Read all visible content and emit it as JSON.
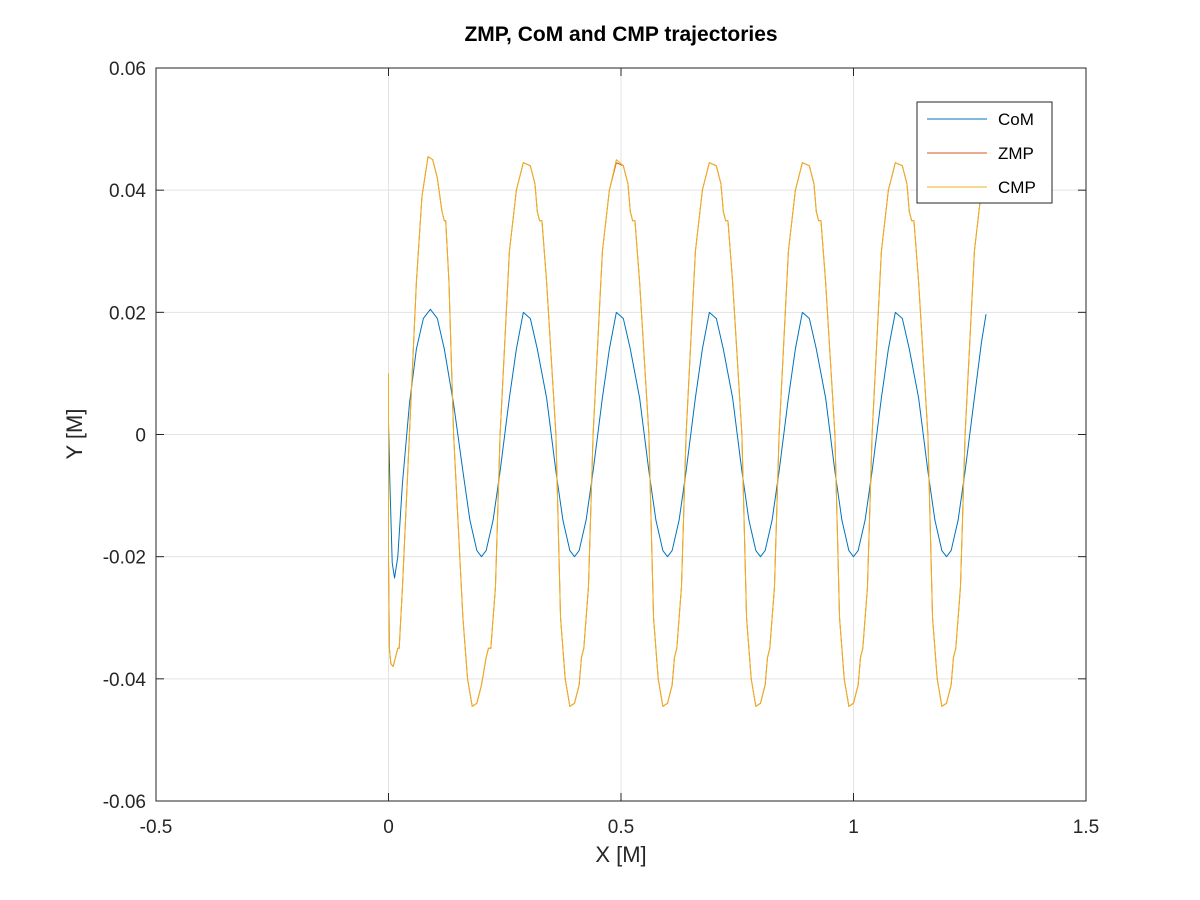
{
  "chart_data": {
    "type": "line",
    "title": "ZMP, CoM and CMP trajectories",
    "xlabel": "X [M]",
    "ylabel": "Y [M]",
    "xlim": [
      -0.5,
      1.5
    ],
    "ylim": [
      -0.06,
      0.06
    ],
    "xticks": [
      -0.5,
      0,
      0.5,
      1,
      1.5
    ],
    "xtick_labels": [
      "-0.5",
      "0",
      "0.5",
      "1",
      "1.5"
    ],
    "yticks": [
      -0.06,
      -0.04,
      -0.02,
      0,
      0.02,
      0.04,
      0.06
    ],
    "ytick_labels": [
      "-0.06",
      "-0.04",
      "-0.02",
      "0",
      "0.02",
      "0.04",
      "0.06"
    ],
    "grid": true,
    "legend_position": "top-right",
    "series": [
      {
        "name": "CoM",
        "color": "#0072BD",
        "x": [
          0.0,
          0.003,
          0.008,
          0.013,
          0.02,
          0.03,
          0.045,
          0.06,
          0.075,
          0.09,
          0.105,
          0.12,
          0.14,
          0.16,
          0.175,
          0.19,
          0.2,
          0.21,
          0.225,
          0.24,
          0.26,
          0.275,
          0.29,
          0.305,
          0.32,
          0.34,
          0.36,
          0.375,
          0.39,
          0.4,
          0.41,
          0.425,
          0.44,
          0.46,
          0.475,
          0.49,
          0.505,
          0.52,
          0.54,
          0.56,
          0.575,
          0.59,
          0.6,
          0.61,
          0.625,
          0.64,
          0.66,
          0.675,
          0.69,
          0.705,
          0.72,
          0.74,
          0.76,
          0.775,
          0.79,
          0.8,
          0.81,
          0.825,
          0.84,
          0.86,
          0.875,
          0.89,
          0.905,
          0.92,
          0.94,
          0.96,
          0.975,
          0.99,
          1.0,
          1.01,
          1.025,
          1.04,
          1.06,
          1.075,
          1.09,
          1.105,
          1.12,
          1.14,
          1.16,
          1.175,
          1.19,
          1.2,
          1.21,
          1.225,
          1.24,
          1.26,
          1.275,
          1.285
        ],
        "y": [
          0.002,
          -0.008,
          -0.021,
          -0.0235,
          -0.02,
          -0.008,
          0.005,
          0.014,
          0.019,
          0.0205,
          0.019,
          0.014,
          0.005,
          -0.006,
          -0.014,
          -0.019,
          -0.02,
          -0.019,
          -0.014,
          -0.006,
          0.006,
          0.014,
          0.02,
          0.019,
          0.014,
          0.006,
          -0.006,
          -0.014,
          -0.019,
          -0.02,
          -0.019,
          -0.014,
          -0.006,
          0.006,
          0.014,
          0.02,
          0.019,
          0.014,
          0.006,
          -0.006,
          -0.014,
          -0.019,
          -0.02,
          -0.019,
          -0.014,
          -0.006,
          0.006,
          0.014,
          0.02,
          0.019,
          0.014,
          0.006,
          -0.006,
          -0.014,
          -0.019,
          -0.02,
          -0.019,
          -0.014,
          -0.006,
          0.006,
          0.014,
          0.02,
          0.019,
          0.014,
          0.006,
          -0.006,
          -0.014,
          -0.019,
          -0.02,
          -0.019,
          -0.014,
          -0.006,
          0.006,
          0.014,
          0.02,
          0.019,
          0.014,
          0.006,
          -0.006,
          -0.014,
          -0.019,
          -0.02,
          -0.019,
          -0.014,
          -0.006,
          0.006,
          0.015,
          0.0197
        ]
      },
      {
        "name": "ZMP",
        "color": "#D95319",
        "x": [
          0.0,
          0.0,
          0.002,
          0.005,
          0.01,
          0.02,
          0.023,
          0.03,
          0.045,
          0.06,
          0.072,
          0.085,
          0.095,
          0.105,
          0.115,
          0.12,
          0.123,
          0.13,
          0.14,
          0.16,
          0.17,
          0.18,
          0.19,
          0.2,
          0.21,
          0.215,
          0.22,
          0.23,
          0.24,
          0.26,
          0.275,
          0.29,
          0.305,
          0.315,
          0.32,
          0.325,
          0.33,
          0.34,
          0.36,
          0.37,
          0.38,
          0.39,
          0.4,
          0.41,
          0.415,
          0.42,
          0.43,
          0.44,
          0.46,
          0.475,
          0.49,
          0.505,
          0.515,
          0.52,
          0.525,
          0.53,
          0.54,
          0.56,
          0.57,
          0.58,
          0.59,
          0.6,
          0.61,
          0.615,
          0.62,
          0.63,
          0.64,
          0.66,
          0.675,
          0.69,
          0.705,
          0.715,
          0.72,
          0.725,
          0.73,
          0.74,
          0.76,
          0.77,
          0.78,
          0.79,
          0.8,
          0.81,
          0.815,
          0.82,
          0.83,
          0.84,
          0.86,
          0.875,
          0.89,
          0.905,
          0.915,
          0.92,
          0.925,
          0.93,
          0.94,
          0.96,
          0.97,
          0.98,
          0.99,
          1.0,
          1.01,
          1.015,
          1.02,
          1.03,
          1.04,
          1.06,
          1.075,
          1.09,
          1.105,
          1.115,
          1.12,
          1.125,
          1.13,
          1.14,
          1.16,
          1.17,
          1.18,
          1.19,
          1.2,
          1.21,
          1.215,
          1.22,
          1.23,
          1.24,
          1.26,
          1.275,
          1.28
        ],
        "y": [
          0.01,
          -0.02,
          -0.035,
          -0.0375,
          -0.038,
          -0.035,
          -0.035,
          -0.025,
          0.0,
          0.025,
          0.039,
          0.0455,
          0.045,
          0.042,
          0.0365,
          0.035,
          0.035,
          0.025,
          0.0,
          -0.03,
          -0.04,
          -0.0445,
          -0.044,
          -0.041,
          -0.0365,
          -0.035,
          -0.035,
          -0.025,
          0.0,
          0.03,
          0.04,
          0.0445,
          0.044,
          0.041,
          0.0365,
          0.035,
          0.035,
          0.025,
          0.0,
          -0.03,
          -0.04,
          -0.0445,
          -0.044,
          -0.041,
          -0.0365,
          -0.035,
          -0.025,
          0.0,
          0.03,
          0.04,
          0.0445,
          0.044,
          0.041,
          0.0365,
          0.035,
          0.035,
          0.025,
          0.0,
          -0.03,
          -0.04,
          -0.0445,
          -0.044,
          -0.041,
          -0.0365,
          -0.035,
          -0.025,
          0.0,
          0.03,
          0.04,
          0.0445,
          0.044,
          0.041,
          0.0365,
          0.035,
          0.035,
          0.025,
          0.0,
          -0.03,
          -0.04,
          -0.0445,
          -0.044,
          -0.041,
          -0.0365,
          -0.035,
          -0.025,
          0.0,
          0.03,
          0.04,
          0.0445,
          0.044,
          0.041,
          0.0365,
          0.035,
          0.035,
          0.025,
          0.0,
          -0.03,
          -0.04,
          -0.0445,
          -0.044,
          -0.041,
          -0.0365,
          -0.035,
          -0.025,
          0.0,
          0.03,
          0.04,
          0.0445,
          0.044,
          0.041,
          0.0365,
          0.035,
          0.035,
          0.025,
          0.0,
          -0.03,
          -0.04,
          -0.0445,
          -0.044,
          -0.041,
          -0.0365,
          -0.035,
          -0.025,
          0.0,
          0.03,
          0.04,
          0.042
        ]
      },
      {
        "name": "CMP",
        "color": "#EDB120",
        "x": [
          0.0,
          0.0,
          0.002,
          0.005,
          0.01,
          0.02,
          0.023,
          0.03,
          0.045,
          0.06,
          0.072,
          0.085,
          0.095,
          0.105,
          0.115,
          0.12,
          0.123,
          0.13,
          0.14,
          0.16,
          0.17,
          0.18,
          0.19,
          0.2,
          0.21,
          0.215,
          0.22,
          0.23,
          0.24,
          0.26,
          0.275,
          0.29,
          0.305,
          0.315,
          0.32,
          0.325,
          0.33,
          0.34,
          0.36,
          0.37,
          0.38,
          0.39,
          0.4,
          0.41,
          0.415,
          0.42,
          0.43,
          0.44,
          0.46,
          0.475,
          0.49,
          0.505,
          0.515,
          0.52,
          0.525,
          0.53,
          0.54,
          0.56,
          0.57,
          0.58,
          0.59,
          0.6,
          0.61,
          0.615,
          0.62,
          0.63,
          0.64,
          0.66,
          0.675,
          0.69,
          0.705,
          0.715,
          0.72,
          0.725,
          0.73,
          0.74,
          0.76,
          0.77,
          0.78,
          0.79,
          0.8,
          0.81,
          0.815,
          0.82,
          0.83,
          0.84,
          0.86,
          0.875,
          0.89,
          0.905,
          0.915,
          0.92,
          0.925,
          0.93,
          0.94,
          0.96,
          0.97,
          0.98,
          0.99,
          1.0,
          1.01,
          1.015,
          1.02,
          1.03,
          1.04,
          1.06,
          1.075,
          1.09,
          1.105,
          1.115,
          1.12,
          1.125,
          1.13,
          1.14,
          1.16,
          1.17,
          1.18,
          1.19,
          1.2,
          1.21,
          1.215,
          1.22,
          1.23,
          1.24,
          1.26,
          1.275,
          1.28
        ],
        "y": [
          0.01,
          -0.02,
          -0.035,
          -0.0375,
          -0.038,
          -0.035,
          -0.035,
          -0.025,
          0.0,
          0.025,
          0.039,
          0.0455,
          0.045,
          0.042,
          0.0365,
          0.035,
          0.035,
          0.025,
          0.0,
          -0.03,
          -0.04,
          -0.0445,
          -0.044,
          -0.041,
          -0.0365,
          -0.035,
          -0.035,
          -0.025,
          0.0,
          0.03,
          0.04,
          0.0445,
          0.044,
          0.041,
          0.0365,
          0.035,
          0.035,
          0.025,
          0.0,
          -0.03,
          -0.04,
          -0.0445,
          -0.044,
          -0.041,
          -0.0365,
          -0.035,
          -0.025,
          0.0,
          0.03,
          0.04,
          0.045,
          0.044,
          0.041,
          0.0365,
          0.035,
          0.035,
          0.025,
          0.0,
          -0.03,
          -0.04,
          -0.0445,
          -0.044,
          -0.041,
          -0.0365,
          -0.035,
          -0.025,
          0.0,
          0.03,
          0.04,
          0.0445,
          0.044,
          0.041,
          0.0365,
          0.035,
          0.035,
          0.025,
          0.0,
          -0.03,
          -0.04,
          -0.0445,
          -0.044,
          -0.041,
          -0.0365,
          -0.035,
          -0.025,
          0.0,
          0.03,
          0.04,
          0.0445,
          0.044,
          0.041,
          0.0365,
          0.035,
          0.035,
          0.025,
          0.0,
          -0.03,
          -0.04,
          -0.0445,
          -0.044,
          -0.041,
          -0.0365,
          -0.035,
          -0.025,
          0.0,
          0.03,
          0.04,
          0.0445,
          0.044,
          0.041,
          0.0365,
          0.035,
          0.035,
          0.025,
          0.0,
          -0.03,
          -0.04,
          -0.0445,
          -0.044,
          -0.041,
          -0.0365,
          -0.035,
          -0.025,
          0.0,
          0.03,
          0.04,
          0.042
        ]
      }
    ]
  }
}
